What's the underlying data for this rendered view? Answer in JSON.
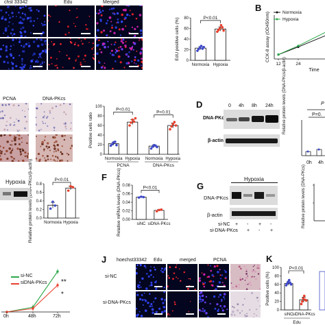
{
  "panel_letters": {
    "B": "B",
    "D": "D",
    "F": "F",
    "G": "G",
    "J": "J",
    "K": "K"
  },
  "panel_a": {
    "hoechst": "chst 33342",
    "edu": "Edu",
    "merged": "Merged"
  },
  "panel_c": {
    "pcna": "PCNA",
    "dnapkcs": "DNA-PKcs"
  },
  "panel_d": {
    "row1": "DNA-PKcs",
    "row2": "β-actin",
    "times": [
      "0",
      "4h",
      "8h",
      "24h"
    ],
    "ylabel": "Relative protein levels (DNA-PKcs/β-actin)",
    "p1": "P",
    "p2": "P=0.",
    "xticks": [
      "0h",
      "4h"
    ]
  },
  "panel_e": {
    "hypoxia": "Hypoxia"
  },
  "panel_g": {
    "header": "Hypoxia",
    "row1": "DNA-PKcs",
    "row2": "β-actin",
    "sinc": "si-NC",
    "sidna": "si-DNA-PKcs",
    "sinc_marks": [
      "+",
      "-",
      "+",
      "-"
    ],
    "sidna_marks": [
      "-",
      "+",
      "-",
      "+"
    ],
    "ylabel": "Relative protein levels (DNA-PKcs)"
  },
  "panel_h": {
    "legend": [
      "si-NC",
      "siDNA-PKcs"
    ],
    "xticks": [
      "0h",
      "48h",
      "72h"
    ],
    "sig1": "**",
    "sig2": "*"
  },
  "panel_j": {
    "hoechst": "hoechst33342",
    "edu": "Edu",
    "merged": "merged",
    "pcna": "PCNA",
    "row1": "si-NC",
    "row2": "si-DNA-PKcs"
  },
  "colors": {
    "hypoxia_red": "#e8402c",
    "normoxia_blue": "#3f49c8",
    "green_line": "#2ba84a",
    "red_line": "#e8402c",
    "black": "#111111"
  },
  "chart_data": [
    {
      "type": "bar",
      "panel": "A-quant",
      "categories": [
        "Normoxia",
        "Hypoxia"
      ],
      "values": [
        23,
        59
      ],
      "points": [
        [
          18,
          21,
          24,
          27,
          22,
          25
        ],
        [
          54,
          57,
          60,
          66,
          62,
          56
        ]
      ],
      "ylabel": "EdU positive cells (%)",
      "ylim": [
        0,
        80
      ],
      "yticks": [
        "0",
        "20",
        "40",
        "60",
        "80"
      ],
      "pvalue": "P<0.01"
    },
    {
      "type": "line",
      "panel": "B",
      "series": [
        {
          "name": "Normoxia",
          "x": [
            12,
            24,
            48
          ],
          "y": [
            0.2,
            0.55,
            1.3
          ]
        },
        {
          "name": "Hypoxia",
          "x": [
            12,
            24,
            48
          ],
          "y": [
            0.2,
            0.6,
            1.5
          ]
        }
      ],
      "xticks": [
        "12",
        "24"
      ],
      "xlabel": "Time",
      "ylabel": "CCK-8 assay (OD450nm)"
    },
    {
      "type": "bar",
      "panel": "C-quant",
      "groups": [
        "PCNA",
        "DNA-PKcs"
      ],
      "categories": [
        "Normoxia",
        "Hypoxia",
        "Normoxia",
        "Hypoxia"
      ],
      "values": [
        22,
        67,
        17,
        60
      ],
      "points": [
        [
          18,
          21,
          25,
          26,
          19
        ],
        [
          60,
          66,
          72,
          68,
          75
        ],
        [
          12,
          16,
          19,
          18,
          15
        ],
        [
          52,
          58,
          63,
          67,
          60
        ]
      ],
      "ylabel": "Positive cells ratio",
      "ylim": [
        0,
        100
      ],
      "yticks": [
        "0",
        "20",
        "40",
        "60",
        "80",
        "100"
      ],
      "pvalues": [
        "P<0.01",
        "P<0.01"
      ]
    },
    {
      "type": "bar",
      "panel": "E-quant",
      "categories": [
        "Normoxia",
        "Hypoxia"
      ],
      "values": [
        0.3,
        0.7
      ],
      "points": [
        [
          0.22,
          0.38,
          0.29
        ],
        [
          0.64,
          0.74,
          0.72
        ]
      ],
      "ylabel": "Relative protein levels (DNA-PKcs/β-actin)",
      "ylim": [
        0,
        0.8
      ],
      "yticks": [
        "0.0",
        "0.2",
        "0.4",
        "0.6",
        "0.8"
      ],
      "pvalue": "P<0.01"
    },
    {
      "type": "bar",
      "panel": "F",
      "categories": [
        "siNC",
        "siDNA-PKcs"
      ],
      "values": [
        0.052,
        0.021
      ],
      "points": [
        [
          0.051,
          0.053,
          0.052
        ],
        [
          0.019,
          0.022,
          0.023
        ]
      ],
      "ylabel": "Relative mRNA levels (DNA-PKcs)",
      "ylim": [
        0,
        0.08
      ],
      "yticks": [
        "0.00",
        "0.02",
        "0.04",
        "0.06",
        "0.08"
      ],
      "pvalue": "P<0.01"
    },
    {
      "type": "bar",
      "panel": "K",
      "categories": [
        "siNC",
        "siDNA-PKcs"
      ],
      "values": [
        62,
        24
      ],
      "points": [
        [
          58,
          62,
          66,
          70,
          64,
          60
        ],
        [
          14,
          20,
          27,
          33,
          24,
          22
        ]
      ],
      "ylabel": "Positive cells (%)",
      "ylim": [
        0,
        100
      ],
      "yticks": [
        "0",
        "20",
        "40",
        "60",
        "80",
        "100"
      ],
      "xgroup": "Edu",
      "pvalue": "P<0.01"
    }
  ]
}
